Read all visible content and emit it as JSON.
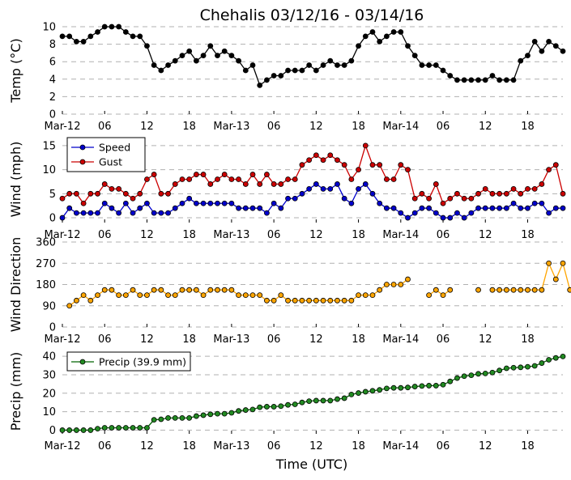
{
  "figure": {
    "title": "Chehalis 03/12/16 - 03/14/16",
    "xlabel": "Time (UTC)",
    "xtick_labels": [
      "Mar-12",
      "06",
      "12",
      "18",
      "Mar-13",
      "06",
      "12",
      "18",
      "Mar-14",
      "06",
      "12",
      "18"
    ]
  },
  "colors": {
    "temp": "#000000",
    "speed": "#0000cc",
    "gust": "#cc0000",
    "direction_line": "#ffa500",
    "direction_marker": "#ffa500",
    "precip": "#006400",
    "precip_marker": "#228b22",
    "grid": "#b0b0b0"
  },
  "chart_data": [
    {
      "type": "line",
      "name": "temperature",
      "ylabel": "Temp (°C)",
      "ylim": [
        0,
        10
      ],
      "yticks": [
        0,
        2,
        4,
        6,
        8,
        10
      ],
      "x_hours_start": 0,
      "x_hours_step": 1,
      "series": [
        {
          "name": "Temp",
          "values": [
            8.9,
            8.9,
            8.3,
            8.3,
            8.9,
            9.4,
            10,
            10,
            10,
            9.4,
            8.9,
            8.9,
            7.8,
            5.6,
            5,
            5.6,
            6.1,
            6.7,
            7.2,
            6.1,
            6.7,
            7.8,
            6.7,
            7.2,
            6.7,
            6.1,
            5,
            5.6,
            3.3,
            3.9,
            4.4,
            4.4,
            5,
            5,
            5,
            5.6,
            5,
            5.6,
            6.1,
            5.6,
            5.6,
            6.1,
            7.8,
            8.9,
            9.4,
            8.3,
            8.9,
            9.4,
            9.4,
            7.8,
            6.7,
            5.6,
            5.6,
            5.6,
            5,
            4.4,
            3.9,
            3.9,
            3.9,
            3.9,
            3.9,
            4.4,
            3.9,
            3.9,
            3.9,
            6.1,
            6.7,
            8.3,
            7.2,
            8.3,
            7.8,
            7.2
          ]
        }
      ]
    },
    {
      "type": "line",
      "name": "wind",
      "ylabel": "Wind (mph)",
      "ylim": [
        -1,
        17
      ],
      "yticks": [
        0,
        5,
        10,
        15
      ],
      "x_hours_start": 0,
      "x_hours_step": 1,
      "legend": [
        "Speed",
        "Gust"
      ],
      "series": [
        {
          "name": "Speed",
          "values": [
            0,
            2,
            1,
            1,
            1,
            1,
            3,
            2,
            1,
            3,
            1,
            2,
            3,
            1,
            1,
            1,
            2,
            3,
            4,
            3,
            3,
            3,
            3,
            3,
            3,
            2,
            2,
            2,
            2,
            1,
            3,
            2,
            4,
            4,
            5,
            6,
            7,
            6,
            6,
            7,
            4,
            3,
            6,
            7,
            5,
            3,
            2,
            2,
            1,
            0,
            1,
            2,
            2,
            1,
            0,
            0,
            1,
            0,
            1,
            2,
            2,
            2,
            2,
            2,
            3,
            2,
            2,
            3,
            3,
            1,
            2,
            2
          ]
        },
        {
          "name": "Gust",
          "values": [
            4,
            5,
            5,
            3,
            5,
            5,
            7,
            6,
            6,
            5,
            4,
            5,
            8,
            9,
            5,
            5,
            7,
            8,
            8,
            9,
            9,
            7,
            8,
            9,
            8,
            8,
            7,
            9,
            7,
            9,
            7,
            7,
            8,
            8,
            11,
            12,
            13,
            12,
            13,
            12,
            11,
            8,
            10,
            15,
            11,
            11,
            8,
            8,
            11,
            10,
            4,
            5,
            4,
            7,
            3,
            4,
            5,
            4,
            4,
            5,
            6,
            5,
            5,
            5,
            6,
            5,
            6,
            6,
            7,
            10,
            11,
            5
          ]
        }
      ]
    },
    {
      "type": "scatter",
      "name": "wind_direction",
      "ylabel": "Wind Direction",
      "ylim": [
        0,
        360
      ],
      "yticks": [
        0,
        90,
        180,
        270,
        360
      ],
      "x_hours_start": 1,
      "x_hours_step": 1,
      "series": [
        {
          "name": "Direction",
          "values": [
            90,
            112,
            135,
            112,
            135,
            157,
            157,
            135,
            135,
            157,
            135,
            135,
            157,
            157,
            135,
            135,
            157,
            157,
            157,
            135,
            157,
            157,
            157,
            157,
            135,
            135,
            135,
            135,
            112,
            112,
            135,
            112,
            112,
            112,
            112,
            112,
            112,
            112,
            112,
            112,
            112,
            135,
            135,
            135,
            157,
            180,
            180,
            180,
            202,
            null,
            null,
            135,
            157,
            135,
            157,
            null,
            null,
            null,
            157,
            null,
            157,
            157,
            157,
            157,
            157,
            157,
            157,
            157,
            270,
            202,
            270,
            157
          ]
        }
      ]
    },
    {
      "type": "line",
      "name": "precip",
      "ylabel": "Precip (mm)",
      "ylim": [
        -2,
        44
      ],
      "yticks": [
        0,
        10,
        20,
        30,
        40
      ],
      "x_hours_start": 0,
      "x_hours_step": 1,
      "legend": [
        "Precip (39.9 mm)"
      ],
      "series": [
        {
          "name": "Precip (39.9 mm)",
          "values": [
            0,
            0,
            0,
            0,
            0,
            0.8,
            1.3,
            1.3,
            1.3,
            1.3,
            1.3,
            1.3,
            1.3,
            5.6,
            5.9,
            6.6,
            6.6,
            6.6,
            6.6,
            7.6,
            8.1,
            8.6,
            8.9,
            8.9,
            9.4,
            10.4,
            10.9,
            11.2,
            12.4,
            12.7,
            12.7,
            13.0,
            13.7,
            14.0,
            15.0,
            15.7,
            16.0,
            16.0,
            16.0,
            16.8,
            17.3,
            19.3,
            20.1,
            20.8,
            21.3,
            21.8,
            22.6,
            22.9,
            22.9,
            23.1,
            23.6,
            23.9,
            24.1,
            24.1,
            24.6,
            26.4,
            28.2,
            29.2,
            29.7,
            30.5,
            30.7,
            31.2,
            32.3,
            33.5,
            33.8,
            34.0,
            34.3,
            34.8,
            36.3,
            38.1,
            39.1,
            39.9
          ]
        }
      ]
    }
  ]
}
